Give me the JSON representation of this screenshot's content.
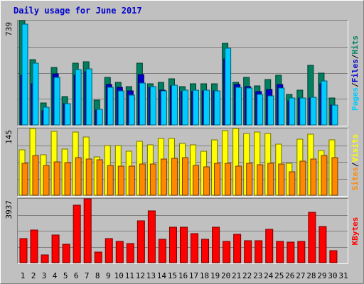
{
  "chart_data": {
    "type": "bar",
    "title": "Daily usage for June 2017",
    "days": [
      "1",
      "2",
      "3",
      "4",
      "5",
      "6",
      "7",
      "8",
      "9",
      "10",
      "11",
      "12",
      "13",
      "14",
      "15",
      "16",
      "17",
      "18",
      "19",
      "20",
      "21",
      "22",
      "23",
      "24",
      "25",
      "26",
      "27",
      "28",
      "29",
      "30",
      "31"
    ],
    "weekend_days": [
      "3",
      "4",
      "10",
      "11",
      "17",
      "18",
      "24",
      "25",
      "31"
    ],
    "panels": [
      {
        "name": "pages-files-hits",
        "max_label": "739",
        "ymax": 739,
        "series": [
          {
            "name": "Hits",
            "color": "#008060",
            "values": [
              739,
              465,
              158,
              405,
              202,
              436,
              445,
              174,
              338,
              300,
              270,
              436,
              290,
              300,
              326,
              270,
              290,
              290,
              290,
              580,
              300,
              338,
              276,
              320,
              350,
              218,
              246,
              424,
              365,
              193,
              null
            ]
          },
          {
            "name": "Files",
            "color": "#0000cc",
            "values": [
              350,
              290,
              100,
              360,
              150,
              350,
              375,
              105,
              285,
              265,
              240,
              355,
              265,
              245,
              275,
              235,
              238,
              240,
              240,
              470,
              285,
              270,
              235,
              250,
              285,
              170,
              190,
              190,
              290,
              140,
              null
            ]
          },
          {
            "name": "Pages",
            "color": "#00ccff",
            "values": [
              715,
              435,
              125,
              335,
              150,
              393,
              395,
              110,
              265,
              240,
              210,
              295,
              270,
              242,
              280,
              245,
              245,
              247,
              242,
              545,
              265,
              260,
              215,
              205,
              263,
              190,
              192,
              198,
              313,
              140,
              null
            ]
          }
        ]
      },
      {
        "name": "sites-visits",
        "max_label": "145",
        "ymax": 145,
        "series": [
          {
            "name": "Visits",
            "color": "#ffff00",
            "values": [
              99,
              145,
              88,
              139,
              100,
              138,
              127,
              84,
              108,
              108,
              96,
              117,
              110,
              123,
              123,
              113,
              110,
              96,
              120,
              140,
              145,
              134,
              138,
              134,
              111,
              70,
              122,
              132,
              97,
              120,
              null
            ]
          },
          {
            "name": "Sites",
            "color": "#ff8800",
            "values": [
              70,
              87,
              65,
              73,
              71,
              81,
              79,
              77,
              65,
              64,
              63,
              68,
              68,
              78,
              80,
              82,
              65,
              61,
              70,
              70,
              64,
              70,
              67,
              70,
              68,
              51,
              74,
              79,
              86,
              82,
              null
            ]
          }
        ]
      },
      {
        "name": "kbytes",
        "max_label": "3937",
        "ymax": 3937,
        "series": [
          {
            "name": "KBytes",
            "color": "#ff0000",
            "values": [
              1500,
              2000,
              460,
              1700,
              1150,
              3550,
              3937,
              640,
              1500,
              1300,
              1200,
              2600,
              3200,
              1450,
              2200,
              2200,
              1800,
              1450,
              2200,
              1300,
              1750,
              1350,
              1350,
              2050,
              1300,
              1250,
              1300,
              3100,
              2250,
              750,
              null
            ]
          }
        ]
      }
    ]
  }
}
